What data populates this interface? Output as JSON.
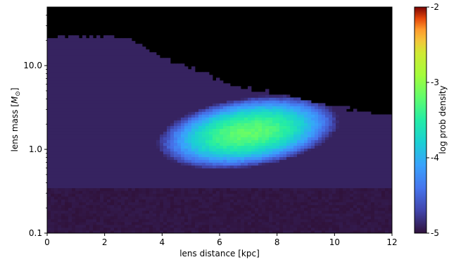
{
  "chart_data": {
    "type": "heatmap",
    "title": "",
    "xlabel": "lens distance [kpc]",
    "ylabel": "lens mass [M_☉]",
    "ylabel_prefix": "lens mass [",
    "ylabel_symbol": "M",
    "ylabel_subscript": "⊙",
    "ylabel_suffix": "]",
    "xlim": [
      0,
      12
    ],
    "ylim": [
      0.1,
      50
    ],
    "yscale": "log",
    "x_ticks": [
      0,
      2,
      4,
      6,
      8,
      10,
      12
    ],
    "x_tick_labels": [
      "0",
      "2",
      "4",
      "6",
      "8",
      "10",
      "12"
    ],
    "y_ticks": [
      0.1,
      1.0,
      10.0
    ],
    "y_tick_labels": [
      "0.1",
      "1.0",
      "10.0"
    ],
    "colorbar": {
      "label": "log prob density",
      "range": [
        -5,
        -2
      ],
      "ticks": [
        -5,
        -4,
        -3,
        -2
      ],
      "tick_labels": [
        "-5",
        "-4",
        "-3",
        "-2"
      ],
      "colormap": "turbo"
    },
    "background_color": "#000000",
    "regions": {
      "low_density_envelope": {
        "log_density": -4.9,
        "upper_boundary": [
          [
            0,
            21.0
          ],
          [
            0.5,
            21.5
          ],
          [
            1,
            22.0
          ],
          [
            1.5,
            22.5
          ],
          [
            2,
            22.5
          ],
          [
            2.5,
            22.0
          ],
          [
            3,
            19.5
          ],
          [
            3.5,
            16.0
          ],
          [
            4,
            12.5
          ],
          [
            4.5,
            10.5
          ],
          [
            5,
            9.5
          ],
          [
            5.5,
            8.5
          ],
          [
            6,
            6.5
          ],
          [
            7,
            5.3
          ],
          [
            8,
            4.6
          ],
          [
            9,
            3.8
          ],
          [
            10,
            3.3
          ],
          [
            11,
            2.8
          ],
          [
            12,
            2.6
          ]
        ]
      },
      "very_low_density_band": {
        "log_density": -5.0,
        "y_range": [
          0.1,
          0.35
        ]
      },
      "high_density_blob": {
        "peak_log_density": -3.2,
        "peak": {
          "x": 7.0,
          "y": 1.6
        },
        "extent_x": [
          4.9,
          11.2
        ],
        "extent_y": [
          0.38,
          5.2
        ]
      }
    }
  }
}
